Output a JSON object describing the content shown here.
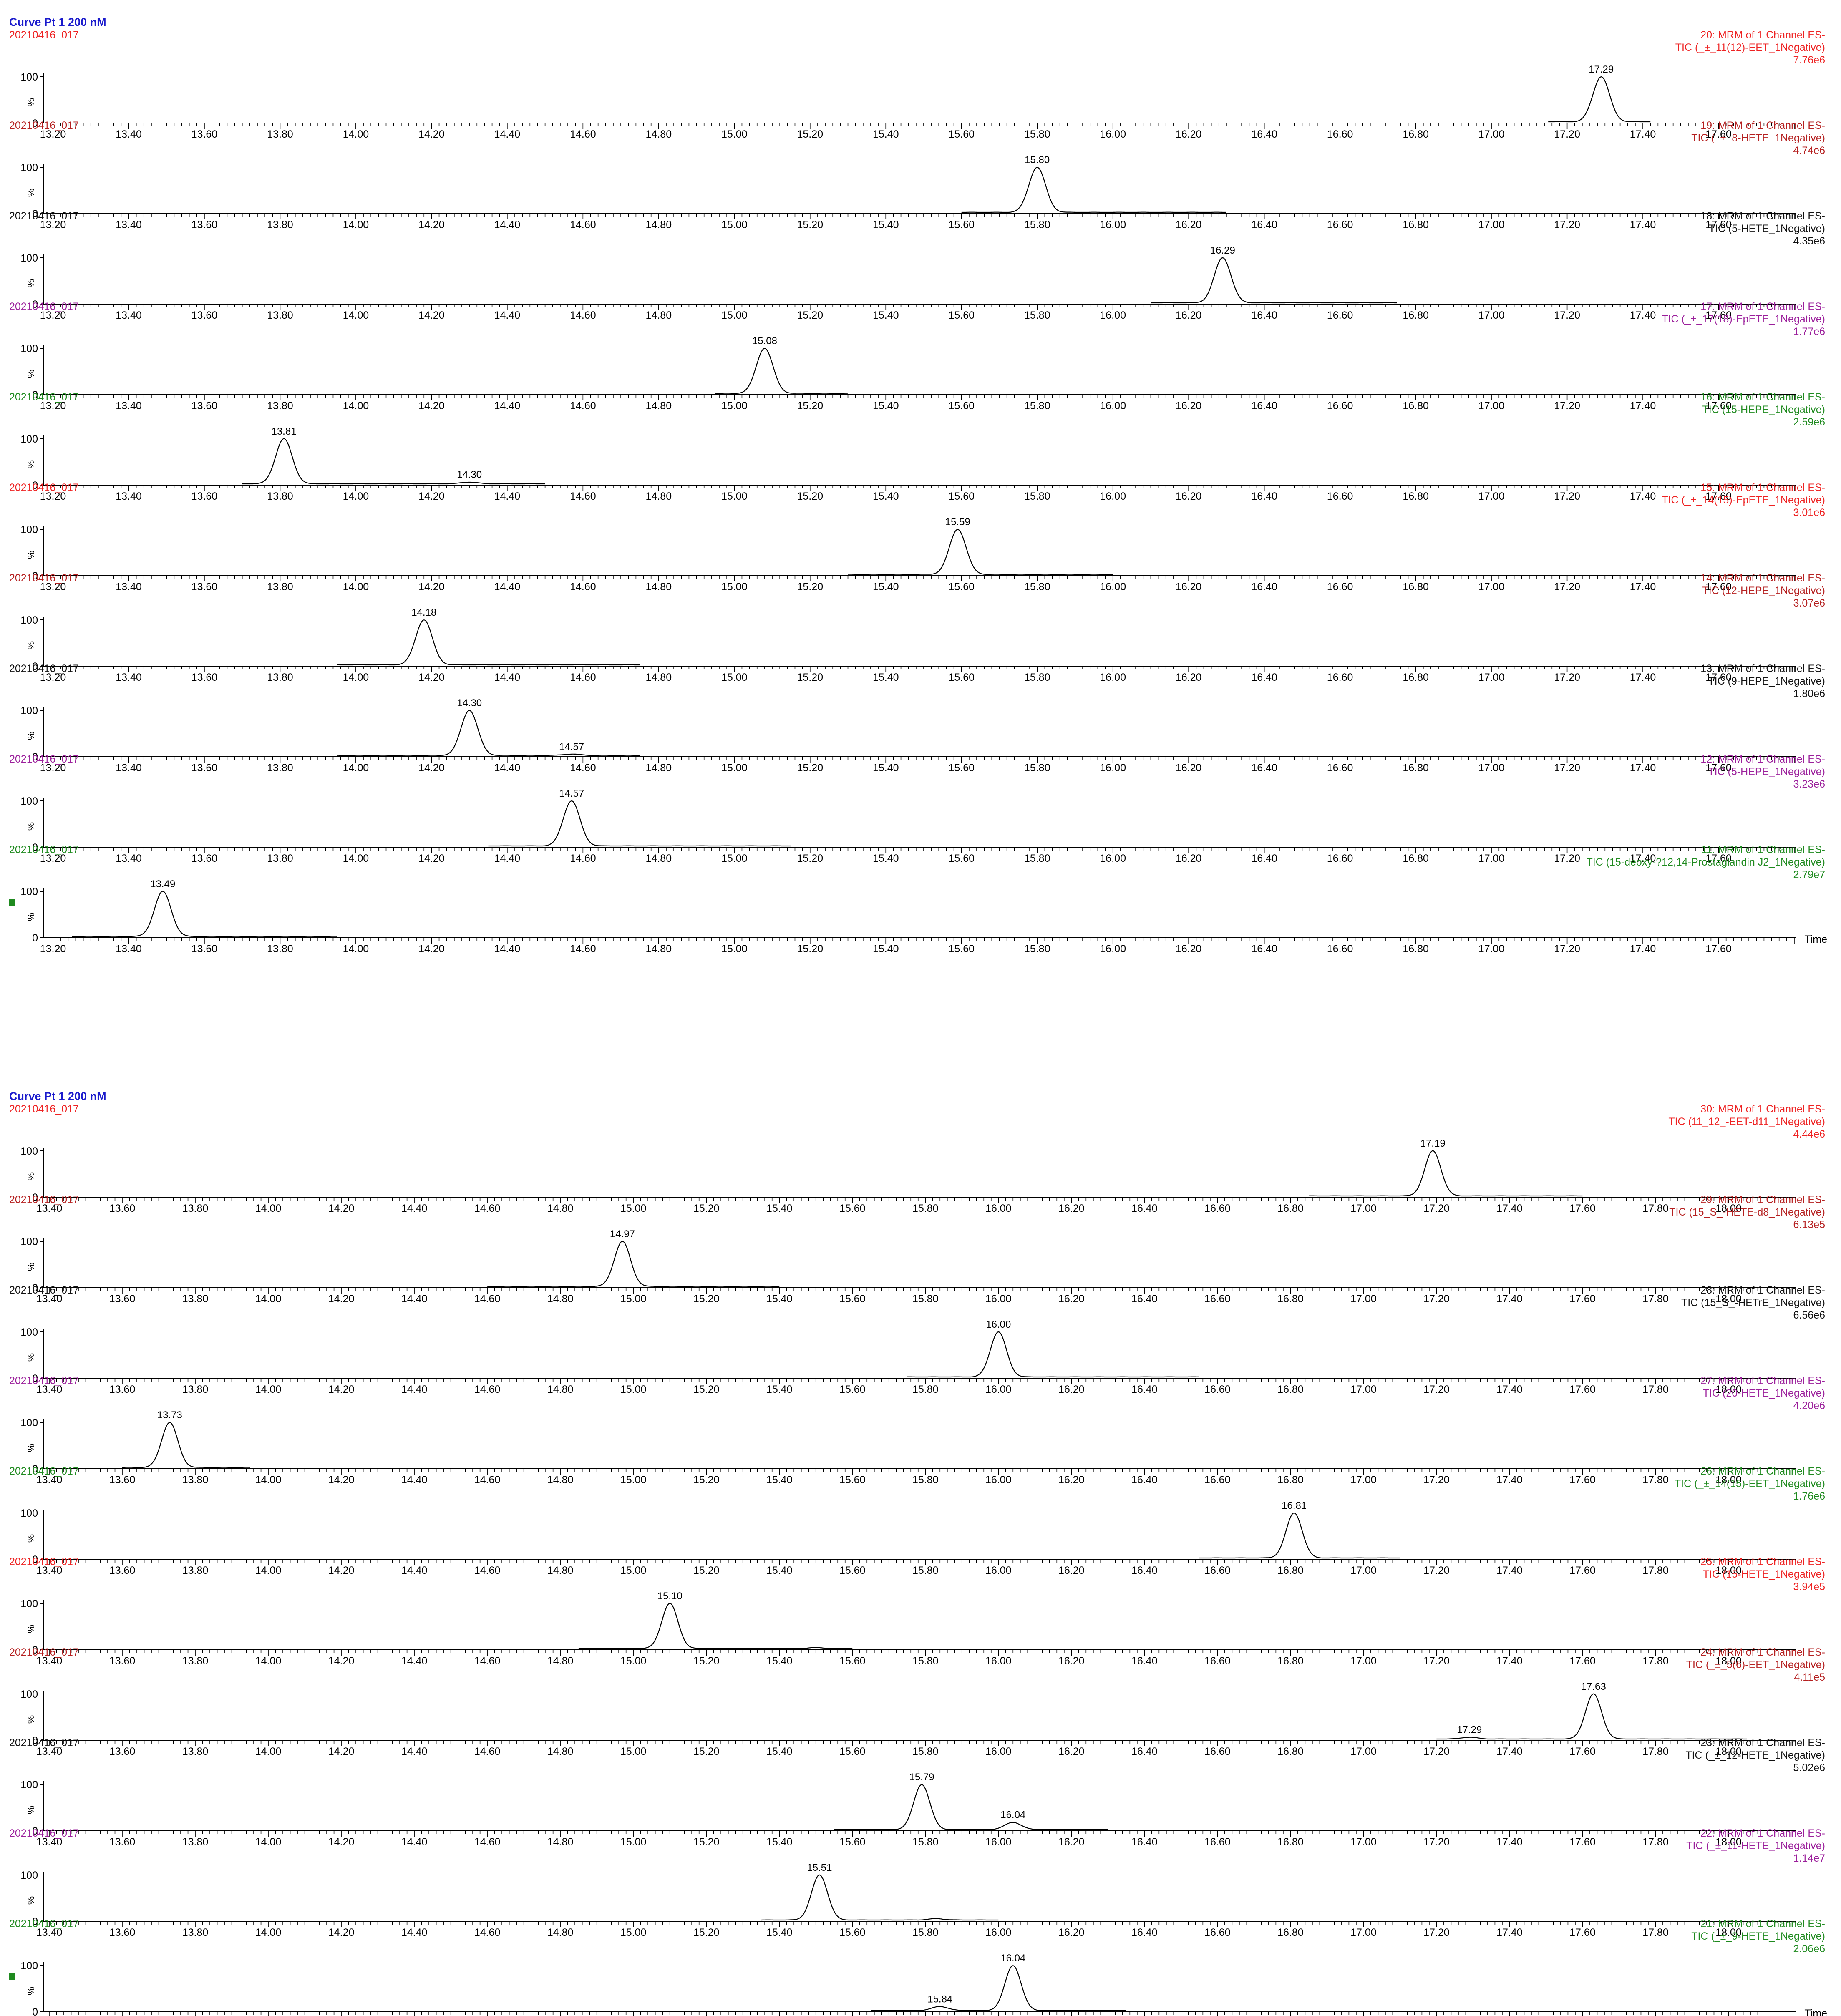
{
  "colors": {
    "title": "#1a1acc",
    "red": "#ee2222",
    "darkred": "#b52020",
    "black": "#111111",
    "purple": "#9b1f9b",
    "green": "#1f8a1f",
    "trace": "#000000",
    "axis": "#000000",
    "marker": "#1f8a1f"
  },
  "chart_data": [
    {
      "type": "line",
      "title": "Curve Pt 1 200 nM",
      "xlabel": "Time",
      "ylabel": "%",
      "xlim": [
        13.2,
        17.8
      ],
      "x_ticks": [
        "13.20",
        "13.40",
        "13.60",
        "13.80",
        "14.00",
        "14.20",
        "14.40",
        "14.60",
        "14.80",
        "15.00",
        "15.20",
        "15.40",
        "15.60",
        "15.80",
        "16.00",
        "16.20",
        "16.40",
        "16.60",
        "16.80",
        "17.00",
        "17.20",
        "17.40",
        "17.60"
      ],
      "y_ticks": [
        "0",
        "100"
      ],
      "series": [
        {
          "file": "20210416_017",
          "color": "red",
          "desc1": "20: MRM of 1 Channel ES-",
          "desc2": "TIC (_±_11(12)-EET_1Negative)",
          "intensity": "7.76e6",
          "window": [
            17.15,
            17.42
          ],
          "peaks": [
            {
              "rt": 17.29,
              "height": 100,
              "label": "17.29"
            }
          ]
        },
        {
          "file": "20210416_017",
          "color": "darkred",
          "desc1": "19: MRM of 1 Channel ES-",
          "desc2": "TIC (_±_8-HETE_1Negative)",
          "intensity": "4.74e6",
          "window": [
            15.6,
            16.3
          ],
          "peaks": [
            {
              "rt": 15.8,
              "height": 100,
              "label": "15.80"
            }
          ]
        },
        {
          "file": "20210416_017",
          "color": "black",
          "desc1": "18: MRM of 1 Channel ES-",
          "desc2": "TIC (5-HETE_1Negative)",
          "intensity": "4.35e6",
          "window": [
            16.1,
            16.75
          ],
          "peaks": [
            {
              "rt": 16.29,
              "height": 100,
              "label": "16.29"
            }
          ]
        },
        {
          "file": "20210416_017",
          "color": "purple",
          "desc1": "17: MRM of 1 Channel ES-",
          "desc2": "TIC (_±_17(18)-EpETE_1Negative)",
          "intensity": "1.77e6",
          "window": [
            14.95,
            15.3
          ],
          "peaks": [
            {
              "rt": 15.08,
              "height": 100,
              "label": "15.08"
            }
          ]
        },
        {
          "file": "20210416_017",
          "color": "green",
          "desc1": "16: MRM of 1 Channel ES-",
          "desc2": "TIC (15-HEPE_1Negative)",
          "intensity": "2.59e6",
          "window": [
            13.7,
            14.5
          ],
          "peaks": [
            {
              "rt": 13.81,
              "height": 100,
              "label": "13.81"
            },
            {
              "rt": 14.3,
              "height": 4,
              "label": "14.30"
            }
          ]
        },
        {
          "file": "20210416_017",
          "color": "red",
          "desc1": "15: MRM of 1 Channel ES-",
          "desc2": "TIC (_±_14(15)-EpETE_1Negative)",
          "intensity": "3.01e6",
          "window": [
            15.3,
            16.0
          ],
          "peaks": [
            {
              "rt": 15.59,
              "height": 100,
              "label": "15.59"
            }
          ]
        },
        {
          "file": "20210416_017",
          "color": "darkred",
          "desc1": "14: MRM of 1 Channel ES-",
          "desc2": "TIC (12-HEPE_1Negative)",
          "intensity": "3.07e6",
          "window": [
            13.95,
            14.75
          ],
          "peaks": [
            {
              "rt": 14.18,
              "height": 100,
              "label": "14.18"
            }
          ]
        },
        {
          "file": "20210416_017",
          "color": "black",
          "desc1": "13: MRM of 1 Channel ES-",
          "desc2": "TIC (9-HEPE_1Negative)",
          "intensity": "1.80e6",
          "window": [
            13.95,
            14.75
          ],
          "peaks": [
            {
              "rt": 14.3,
              "height": 100,
              "label": "14.30"
            },
            {
              "rt": 14.57,
              "height": 3,
              "label": "14.57"
            }
          ]
        },
        {
          "file": "20210416_017",
          "color": "purple",
          "desc1": "12: MRM of 1 Channel ES-",
          "desc2": "TIC (5-HEPE_1Negative)",
          "intensity": "3.23e6",
          "window": [
            14.35,
            15.15
          ],
          "peaks": [
            {
              "rt": 14.57,
              "height": 100,
              "label": "14.57"
            }
          ]
        },
        {
          "file": "20210416_017",
          "color": "green",
          "desc1": "11: MRM of 1 Channel ES-",
          "desc2": "TIC (15-deoxy-?12,14-Prostaglandin J2_1Negative)",
          "intensity": "2.79e7",
          "window": [
            13.25,
            13.95
          ],
          "peaks": [
            {
              "rt": 13.49,
              "height": 100,
              "label": "13.49"
            }
          ]
        }
      ]
    },
    {
      "type": "line",
      "title": "Curve Pt 1 200 nM",
      "xlabel": "Time",
      "ylabel": "%",
      "xlim": [
        13.4,
        18.1
      ],
      "x_ticks": [
        "13.40",
        "13.60",
        "13.80",
        "14.00",
        "14.20",
        "14.40",
        "14.60",
        "14.80",
        "15.00",
        "15.20",
        "15.40",
        "15.60",
        "15.80",
        "16.00",
        "16.20",
        "16.40",
        "16.60",
        "16.80",
        "17.00",
        "17.20",
        "17.40",
        "17.60",
        "17.80",
        "18.00"
      ],
      "y_ticks": [
        "0",
        "100"
      ],
      "series": [
        {
          "file": "20210416_017",
          "color": "red",
          "desc1": "30: MRM of 1 Channel ES-",
          "desc2": "TIC (11_12_-EET-d11_1Negative)",
          "intensity": "4.44e6",
          "window": [
            16.85,
            17.6
          ],
          "peaks": [
            {
              "rt": 17.19,
              "height": 100,
              "label": "17.19"
            }
          ]
        },
        {
          "file": "20210416_017",
          "color": "darkred",
          "desc1": "29: MRM of 1 Channel ES-",
          "desc2": "TIC (15_S_-HETE-d8_1Negative)",
          "intensity": "6.13e5",
          "window": [
            14.6,
            15.4
          ],
          "peaks": [
            {
              "rt": 14.97,
              "height": 100,
              "label": "14.97"
            }
          ]
        },
        {
          "file": "20210416_017",
          "color": "black",
          "desc1": "28: MRM of 1 Channel ES-",
          "desc2": "TIC (15_S_-HETrE_1Negative)",
          "intensity": "6.56e6",
          "window": [
            15.75,
            16.55
          ],
          "peaks": [
            {
              "rt": 16.0,
              "height": 100,
              "label": "16.00"
            }
          ]
        },
        {
          "file": "20210416_017",
          "color": "purple",
          "desc1": "27: MRM of 1 Channel ES-",
          "desc2": "TIC (20-HETE_1Negative)",
          "intensity": "4.20e6",
          "window": [
            13.6,
            13.95
          ],
          "peaks": [
            {
              "rt": 13.73,
              "height": 100,
              "label": "13.73"
            }
          ]
        },
        {
          "file": "20210416_017",
          "color": "green",
          "desc1": "26: MRM of 1 Channel ES-",
          "desc2": "TIC (_±_14(15)-EET_1Negative)",
          "intensity": "1.76e6",
          "window": [
            16.55,
            17.1
          ],
          "peaks": [
            {
              "rt": 16.81,
              "height": 100,
              "label": "16.81"
            }
          ]
        },
        {
          "file": "20210416_017",
          "color": "red",
          "desc1": "25: MRM of 1 Channel ES-",
          "desc2": "TIC (15-HETE_1Negative)",
          "intensity": "3.94e5",
          "window": [
            14.85,
            15.6
          ],
          "peaks": [
            {
              "rt": 15.1,
              "height": 100,
              "label": "15.10"
            },
            {
              "rt": 15.5,
              "height": 2,
              "label": ""
            }
          ]
        },
        {
          "file": "20210416_017",
          "color": "darkred",
          "desc1": "24: MRM of 1 Channel ES-",
          "desc2": "TIC (_±_5(6)-EET_1Negative)",
          "intensity": "4.11e5",
          "window": [
            17.2,
            18.05
          ],
          "peaks": [
            {
              "rt": 17.63,
              "height": 100,
              "label": "17.63"
            },
            {
              "rt": 17.29,
              "height": 4,
              "label": "17.29"
            }
          ]
        },
        {
          "file": "20210416_017",
          "color": "black",
          "desc1": "23: MRM of 1 Channel ES-",
          "desc2": "TIC (_±_12-HETE_1Negative)",
          "intensity": "5.02e6",
          "window": [
            15.55,
            16.3
          ],
          "peaks": [
            {
              "rt": 15.79,
              "height": 100,
              "label": "15.79"
            },
            {
              "rt": 16.04,
              "height": 16,
              "label": "16.04"
            }
          ]
        },
        {
          "file": "20210416_017",
          "color": "purple",
          "desc1": "22: MRM of 1 Channel ES-",
          "desc2": "TIC (_±_11-HETE_1Negative)",
          "intensity": "1.14e7",
          "window": [
            15.35,
            16.0
          ],
          "peaks": [
            {
              "rt": 15.51,
              "height": 100,
              "label": "15.51"
            },
            {
              "rt": 15.83,
              "height": 3,
              "label": ""
            }
          ]
        },
        {
          "file": "20210416_017",
          "color": "green",
          "desc1": "21: MRM of 1 Channel ES-",
          "desc2": "TIC (_±_9-HETE_1Negative)",
          "intensity": "2.06e6",
          "window": [
            15.65,
            16.35
          ],
          "peaks": [
            {
              "rt": 16.04,
              "height": 100,
              "label": "16.04"
            },
            {
              "rt": 15.84,
              "height": 9,
              "label": "15.84"
            }
          ]
        }
      ]
    }
  ]
}
